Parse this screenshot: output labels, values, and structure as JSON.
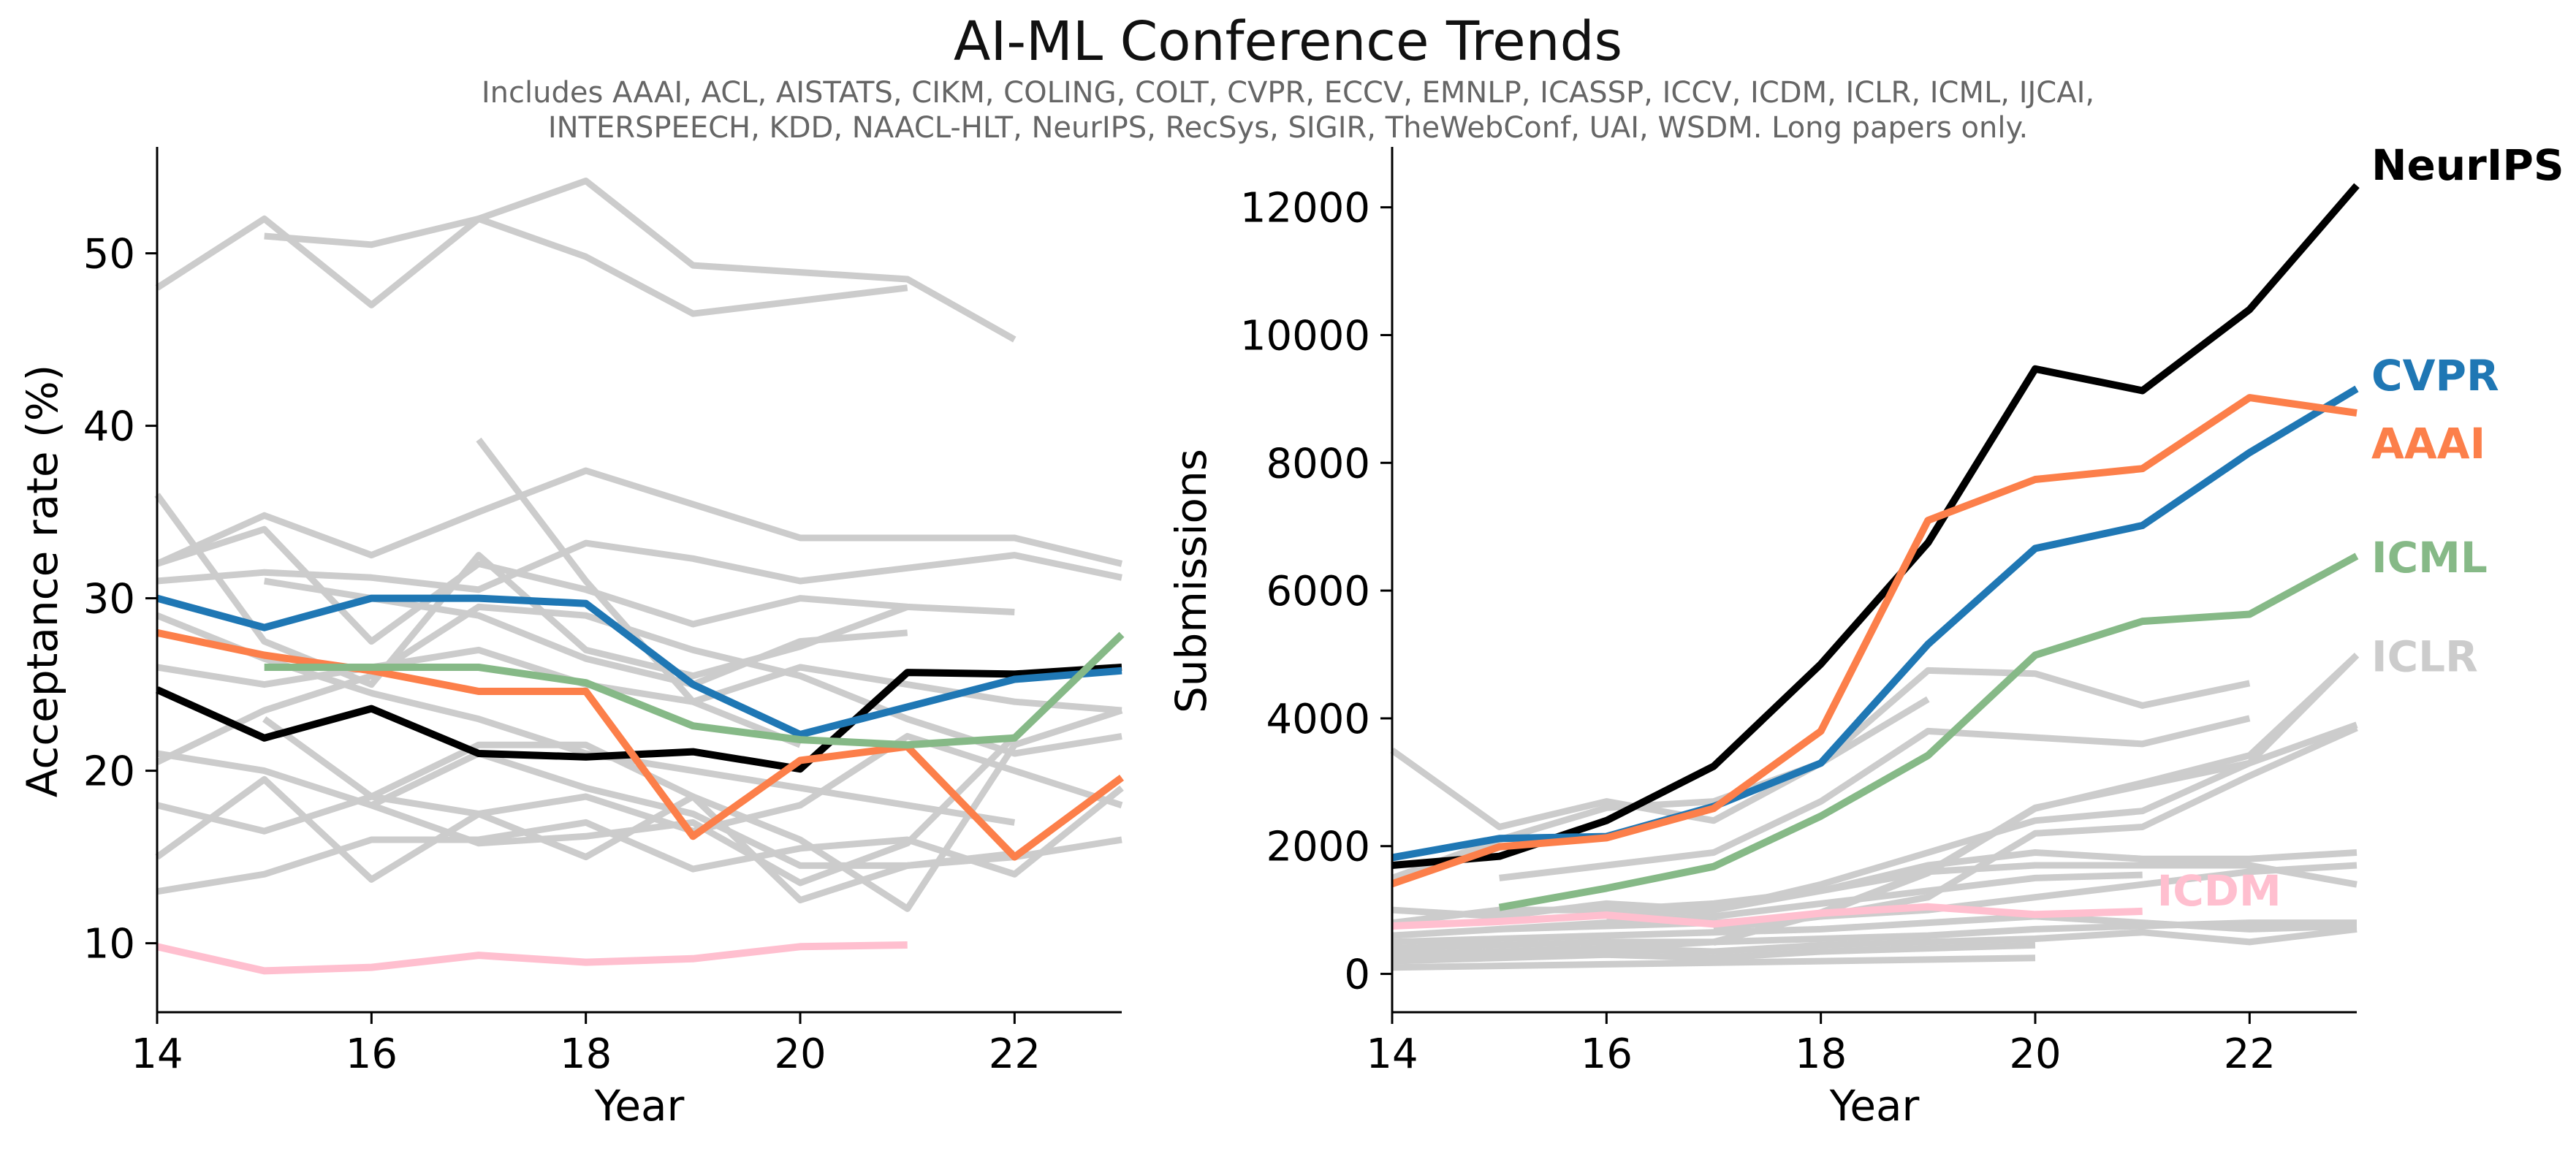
{
  "title": "AI-ML Conference Trends",
  "subtitle_lines": [
    "Includes AAAI, ACL, AISTATS, CIKM, COLING, COLT, CVPR, ECCV, EMNLP, ICASSP, ICCV, ICDM, ICLR, ICML, IJCAI,",
    "INTERSPEECH, KDD, NAACL-HLT, NeurIPS, RecSys, SIGIR, TheWebConf, UAI, WSDM. Long papers only."
  ],
  "colors": {
    "highlight_neurips": "#000000",
    "highlight_cvpr": "#1f77b4",
    "highlight_aaai": "#fc7f4a",
    "highlight_icml": "#86b987",
    "highlight_icdm": "#ffbfcf",
    "highlight_iclr": "#cccccc",
    "background_series": "#cccccc"
  },
  "chart_data": [
    {
      "type": "line",
      "xlabel": "Year",
      "ylabel": "Acceptance rate (%)",
      "xlim": [
        14,
        23
      ],
      "ylim": [
        6,
        56
      ],
      "xticks": [
        14,
        16,
        18,
        20,
        22
      ],
      "yticks": [
        10,
        20,
        30,
        40,
        50
      ],
      "background_series": [
        {
          "x": [
            14,
            15,
            16,
            17,
            18,
            19,
            21
          ],
          "values": [
            48,
            52,
            47,
            52,
            49.8,
            46.5,
            48
          ]
        },
        {
          "x": [
            15,
            16,
            17,
            18,
            19,
            21,
            22
          ],
          "values": [
            51,
            50.5,
            52,
            54.2,
            49.3,
            48.5,
            45
          ]
        },
        {
          "x": [
            14,
            15,
            16,
            17,
            18,
            20,
            22,
            23
          ],
          "values": [
            32,
            34.8,
            32.5,
            35,
            37.4,
            33.5,
            33.5,
            32
          ]
        },
        {
          "x": [
            14,
            15,
            16,
            17,
            18,
            19,
            20,
            22,
            23
          ],
          "values": [
            31,
            31.5,
            31.2,
            30.5,
            33.2,
            32.3,
            31,
            32.5,
            31.2
          ]
        },
        {
          "x": [
            14,
            15,
            16,
            17,
            18,
            19,
            20,
            21
          ],
          "values": [
            36,
            27.5,
            25,
            32.5,
            27,
            25.5,
            27.2,
            29.5
          ]
        },
        {
          "x": [
            17,
            18,
            19,
            20
          ],
          "values": [
            39.2,
            31,
            24,
            21.5
          ]
        },
        {
          "x": [
            14,
            15,
            16,
            17,
            18,
            19,
            20,
            21,
            22
          ],
          "values": [
            32,
            34,
            27.5,
            32,
            30.5,
            28.5,
            30,
            29.5,
            29.2
          ]
        },
        {
          "x": [
            15,
            16,
            17,
            18,
            19,
            20,
            21
          ],
          "values": [
            31,
            30,
            29,
            26.5,
            25,
            27.5,
            28
          ]
        },
        {
          "x": [
            14,
            15,
            16,
            17,
            18,
            19,
            20,
            21,
            22,
            23
          ],
          "values": [
            26,
            25,
            26,
            27,
            25,
            24,
            26,
            25,
            24,
            23.5
          ]
        },
        {
          "x": [
            14,
            15,
            16,
            17,
            18,
            19,
            20,
            21,
            22
          ],
          "values": [
            29,
            26.5,
            24.5,
            23,
            21,
            20,
            19,
            18,
            17
          ]
        },
        {
          "x": [
            14,
            15,
            16,
            17,
            18,
            19,
            20,
            21,
            22,
            23
          ],
          "values": [
            21,
            20,
            18,
            21,
            19,
            17.5,
            14.5,
            14.5,
            15,
            16
          ]
        },
        {
          "x": [
            14,
            15,
            16,
            17,
            18,
            19,
            20,
            21,
            22,
            23
          ],
          "values": [
            20.5,
            23.5,
            25.5,
            29.5,
            29,
            27,
            25.5,
            23,
            21,
            22
          ]
        },
        {
          "x": [
            15,
            16,
            17,
            18,
            19,
            20,
            21,
            22
          ],
          "values": [
            23,
            18.5,
            21.5,
            21.5,
            18.5,
            12.5,
            14.5,
            15.2
          ]
        },
        {
          "x": [
            14,
            15,
            16,
            17,
            18,
            19,
            20,
            21,
            22,
            23
          ],
          "values": [
            18,
            16.5,
            18.5,
            17.5,
            18.5,
            16.5,
            18,
            22,
            20,
            18
          ]
        },
        {
          "x": [
            14,
            15,
            16,
            17,
            18,
            19,
            20,
            21,
            22,
            23
          ],
          "values": [
            15,
            19.5,
            13.7,
            17.5,
            15,
            18.5,
            16,
            12,
            21.5,
            23.5
          ]
        },
        {
          "x": [
            14,
            15,
            16,
            17,
            18,
            19,
            20,
            21,
            22,
            23
          ],
          "values": [
            13,
            14,
            16,
            16,
            17,
            14.3,
            15.5,
            16,
            14,
            19
          ]
        },
        {
          "x": [
            16,
            17,
            18,
            19,
            20,
            21,
            22
          ],
          "values": [
            18,
            15.8,
            16.2,
            17,
            13.5,
            15.8,
            22
          ]
        }
      ],
      "series": [
        {
          "name": "NeurIPS",
          "x": [
            14,
            15,
            16,
            17,
            18,
            19,
            20,
            21,
            22,
            23
          ],
          "values": [
            24.7,
            21.9,
            23.6,
            21,
            20.8,
            21.1,
            20.1,
            25.7,
            25.6,
            26
          ]
        },
        {
          "name": "CVPR",
          "x": [
            14,
            15,
            16,
            17,
            18,
            19,
            20,
            21,
            22,
            23
          ],
          "values": [
            30,
            28.3,
            30,
            30,
            29.7,
            25,
            22.1,
            23.7,
            25.3,
            25.8
          ]
        },
        {
          "name": "AAAI",
          "x": [
            14,
            15,
            16,
            17,
            18,
            19,
            20,
            21,
            22,
            23
          ],
          "values": [
            28,
            26.7,
            25.8,
            24.6,
            24.6,
            16.2,
            20.6,
            21.4,
            15,
            19.6
          ]
        },
        {
          "name": "ICML",
          "x": [
            15,
            16,
            17,
            18,
            19,
            20,
            21,
            22,
            23
          ],
          "values": [
            26,
            26,
            26,
            25.1,
            22.6,
            21.8,
            21.5,
            21.9,
            27.9
          ]
        },
        {
          "name": "ICDM",
          "x": [
            14,
            15,
            16,
            17,
            18,
            19,
            20,
            21
          ],
          "values": [
            9.8,
            8.4,
            8.6,
            9.3,
            8.9,
            9.1,
            9.8,
            9.9
          ]
        }
      ]
    },
    {
      "type": "line",
      "xlabel": "Year",
      "ylabel": "Submissions",
      "xlim": [
        14,
        23
      ],
      "ylim": [
        -600,
        12900
      ],
      "xticks": [
        14,
        16,
        18,
        20,
        22
      ],
      "yticks": [
        0,
        2000,
        4000,
        6000,
        8000,
        10000,
        12000
      ],
      "background_series": [
        {
          "x": [
            14,
            15,
            16,
            17,
            18,
            19
          ],
          "values": [
            3500,
            2300,
            2700,
            2400,
            3300,
            4300
          ]
        },
        {
          "x": [
            14,
            15,
            16,
            17,
            18,
            19,
            20,
            21,
            22
          ],
          "values": [
            1500,
            2100,
            2600,
            2700,
            3300,
            4750,
            4700,
            4200,
            4550
          ]
        },
        {
          "x": [
            15,
            16,
            17,
            18,
            19,
            20,
            21,
            22
          ],
          "values": [
            1500,
            1700,
            1900,
            2700,
            3800,
            3700,
            3600,
            4000
          ]
        },
        {
          "x": [
            17,
            18,
            19,
            20,
            21,
            22,
            23
          ],
          "values": [
            490,
            960,
            1600,
            2600,
            2950,
            3300,
            4990
          ]
        },
        {
          "x": [
            16,
            17,
            18,
            19,
            20,
            21,
            22,
            23
          ],
          "values": [
            900,
            1000,
            1400,
            1900,
            2400,
            2550,
            3300,
            3900
          ]
        },
        {
          "x": [
            17,
            18,
            19,
            20,
            21,
            22,
            23
          ],
          "values": [
            700,
            900,
            1200,
            2200,
            2300,
            3100,
            3850
          ]
        },
        {
          "x": [
            14,
            15,
            16,
            17,
            18,
            19,
            20,
            21,
            22,
            23
          ],
          "values": [
            1000,
            900,
            1100,
            1000,
            1300,
            1700,
            1900,
            1800,
            1800,
            1900
          ]
        },
        {
          "x": [
            14,
            15,
            16,
            17,
            18,
            19,
            20,
            21,
            22,
            23
          ],
          "values": [
            800,
            1000,
            1000,
            1100,
            1300,
            1600,
            1700,
            1700,
            1700,
            1400
          ]
        },
        {
          "x": [
            15,
            16,
            17,
            18,
            19,
            20,
            21
          ],
          "values": [
            700,
            800,
            900,
            1100,
            1300,
            1500,
            1550
          ]
        },
        {
          "x": [
            14,
            15,
            16,
            17,
            18,
            19,
            20,
            21,
            22,
            23
          ],
          "values": [
            600,
            700,
            750,
            800,
            900,
            1000,
            1200,
            1400,
            1600,
            1700
          ]
        },
        {
          "x": [
            14,
            15,
            16,
            17,
            18,
            19,
            20,
            21,
            22,
            23
          ],
          "values": [
            500,
            550,
            600,
            650,
            700,
            800,
            900,
            800,
            700,
            750
          ]
        },
        {
          "x": [
            14,
            15,
            16,
            17,
            18,
            19,
            20,
            21,
            22,
            23
          ],
          "values": [
            400,
            450,
            500,
            500,
            550,
            600,
            700,
            750,
            800,
            800
          ]
        },
        {
          "x": [
            14,
            15,
            16,
            17,
            18,
            19,
            20,
            21,
            22,
            23
          ],
          "values": [
            300,
            350,
            400,
            350,
            450,
            500,
            550,
            650,
            500,
            700
          ]
        },
        {
          "x": [
            14,
            15,
            16,
            17,
            18,
            19,
            20
          ],
          "values": [
            200,
            250,
            300,
            250,
            350,
            400,
            450
          ]
        },
        {
          "x": [
            14,
            16,
            18,
            20
          ],
          "values": [
            100,
            150,
            200,
            250
          ]
        }
      ],
      "series": [
        {
          "name": "NeurIPS",
          "x": [
            14,
            15,
            16,
            17,
            18,
            19,
            20,
            21,
            22,
            23
          ],
          "values": [
            1700,
            1840,
            2400,
            3250,
            4850,
            6750,
            9470,
            9130,
            10400,
            12340
          ]
        },
        {
          "name": "CVPR",
          "x": [
            14,
            15,
            16,
            17,
            18,
            19,
            20,
            21,
            22,
            23
          ],
          "values": [
            1820,
            2120,
            2150,
            2620,
            3300,
            5160,
            6660,
            7020,
            8160,
            9160
          ]
        },
        {
          "name": "AAAI",
          "x": [
            14,
            15,
            16,
            17,
            18,
            19,
            20,
            21,
            22,
            23
          ],
          "values": [
            1410,
            1990,
            2130,
            2590,
            3800,
            7100,
            7740,
            7910,
            9020,
            8780
          ]
        },
        {
          "name": "ICML",
          "x": [
            15,
            16,
            17,
            18,
            19,
            20,
            21,
            22,
            23
          ],
          "values": [
            1040,
            1340,
            1680,
            2470,
            3420,
            4990,
            5520,
            5630,
            6540
          ]
        },
        {
          "name": "ICLR",
          "x": [
            14,
            15,
            16,
            17,
            18,
            19,
            20,
            21,
            22,
            23
          ],
          "values": [
            200,
            300,
            400,
            500,
            940,
            1580,
            2590,
            2990,
            3420,
            4990
          ]
        },
        {
          "name": "ICDM",
          "x": [
            14,
            15,
            16,
            17,
            18,
            19,
            20,
            21
          ],
          "values": [
            750,
            820,
            920,
            780,
            950,
            1050,
            930,
            980
          ]
        }
      ],
      "labels": [
        "NeurIPS",
        "CVPR",
        "AAAI",
        "ICML",
        "ICLR",
        "ICDM"
      ]
    }
  ]
}
